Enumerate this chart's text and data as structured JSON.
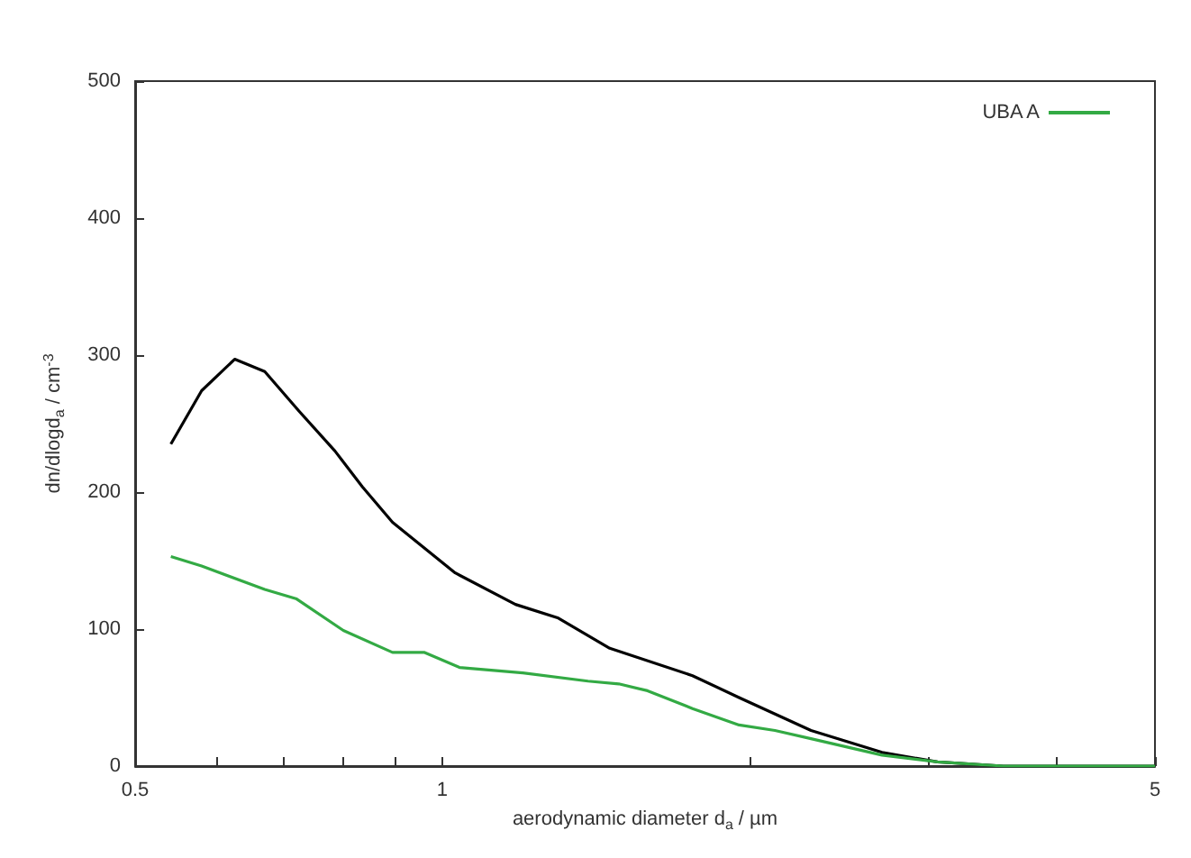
{
  "chart_data": {
    "type": "line",
    "xlabel": "aerodynamic diameter d$_{a}$ / µm",
    "ylabel": "dn/dlogd$_{a}$ / cm$^{-3}$",
    "log": "x",
    "xlim": [
      0.5,
      5
    ],
    "xticks": [
      0.5,
      {
        "value": 0.6,
        "label": null
      },
      {
        "value": 0.7,
        "label": null
      },
      {
        "value": 0.8,
        "label": null
      },
      {
        "value": 0.9,
        "label": null
      },
      1,
      {
        "value": 2,
        "label": null
      },
      {
        "value": 3,
        "label": null
      },
      {
        "value": 4,
        "label": null
      },
      5
    ],
    "ylim": [
      0,
      500
    ],
    "yticks": [
      0,
      100,
      200,
      300,
      400,
      500
    ],
    "grid": false,
    "legend": "top right",
    "series": [
      {
        "color": "#000000",
        "x": [
          0.542,
          0.581,
          0.626,
          0.67,
          0.724,
          0.785,
          0.835,
          0.894,
          1.03,
          1.18,
          1.3,
          1.46,
          1.76,
          1.955,
          2.3,
          2.7,
          3.06,
          3.55,
          5
        ],
        "values": [
          235,
          274,
          297,
          288,
          259,
          230,
          204,
          178,
          141,
          118,
          108,
          86,
          66,
          50,
          26,
          10,
          3,
          0,
          0
        ]
      },
      {
        "name": "UBA A",
        "color": "#33aa44",
        "x": [
          0.542,
          0.581,
          0.67,
          0.72,
          0.8,
          0.894,
          0.96,
          1.04,
          1.2,
          1.39,
          1.49,
          1.59,
          1.76,
          1.955,
          2.12,
          2.3,
          2.7,
          3.06,
          3.55,
          5
        ],
        "values": [
          153,
          146,
          129,
          122,
          99,
          83,
          83,
          72,
          68,
          62,
          60,
          55,
          42,
          30,
          26,
          20,
          8,
          3,
          0,
          0
        ]
      }
    ]
  }
}
